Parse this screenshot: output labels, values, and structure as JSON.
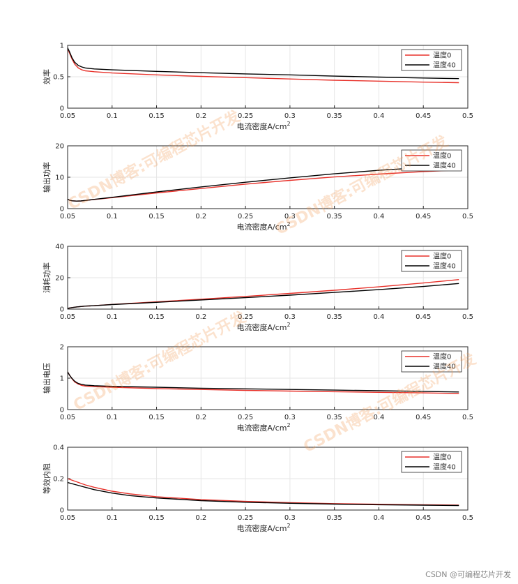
{
  "chart_data": [
    {
      "type": "line",
      "ylabel": "效率",
      "xlabel": "电流密度A/cm",
      "xlabel_sup": "2",
      "xlim": [
        0.05,
        0.5
      ],
      "ylim": [
        0,
        1
      ],
      "xticks": [
        "0.05",
        "0.1",
        "0.15",
        "0.2",
        "0.25",
        "0.3",
        "0.35",
        "0.4",
        "0.45",
        "0.5"
      ],
      "yticks": [
        "0",
        "0.5",
        "1"
      ],
      "grid": true,
      "legend": "top-right",
      "series": [
        {
          "name": "温度0",
          "color": "#e8312a",
          "x": [
            0.05,
            0.052,
            0.055,
            0.058,
            0.062,
            0.066,
            0.07,
            0.08,
            0.1,
            0.15,
            0.2,
            0.25,
            0.3,
            0.35,
            0.4,
            0.45,
            0.49
          ],
          "y": [
            0.95,
            0.88,
            0.78,
            0.7,
            0.64,
            0.61,
            0.595,
            0.58,
            0.56,
            0.53,
            0.505,
            0.485,
            0.465,
            0.445,
            0.43,
            0.415,
            0.405
          ]
        },
        {
          "name": "温度40",
          "color": "#000000",
          "x": [
            0.05,
            0.052,
            0.055,
            0.058,
            0.062,
            0.066,
            0.07,
            0.08,
            0.1,
            0.15,
            0.2,
            0.25,
            0.3,
            0.35,
            0.4,
            0.45,
            0.49
          ],
          "y": [
            0.96,
            0.9,
            0.8,
            0.73,
            0.68,
            0.655,
            0.64,
            0.625,
            0.61,
            0.585,
            0.565,
            0.545,
            0.53,
            0.51,
            0.495,
            0.48,
            0.47
          ]
        }
      ]
    },
    {
      "type": "line",
      "ylabel": "输出功率",
      "xlabel": "电流密度A/cm",
      "xlabel_sup": "2",
      "xlim": [
        0.05,
        0.5
      ],
      "ylim": [
        0,
        20
      ],
      "xticks": [
        "0.05",
        "0.1",
        "0.15",
        "0.2",
        "0.25",
        "0.3",
        "0.35",
        "0.4",
        "0.45",
        "0.5"
      ],
      "yticks": [
        "0",
        "10",
        "20"
      ],
      "grid": true,
      "legend": "top-right",
      "series": [
        {
          "name": "温度0",
          "color": "#e8312a",
          "x": [
            0.05,
            0.052,
            0.055,
            0.06,
            0.065,
            0.07,
            0.08,
            0.1,
            0.15,
            0.2,
            0.25,
            0.3,
            0.35,
            0.4,
            0.45,
            0.49
          ],
          "y": [
            3.0,
            2.7,
            2.5,
            2.4,
            2.45,
            2.6,
            2.9,
            3.5,
            5.0,
            6.4,
            7.8,
            9.0,
            10.1,
            11.0,
            11.8,
            12.3
          ]
        },
        {
          "name": "温度40",
          "color": "#000000",
          "x": [
            0.05,
            0.052,
            0.055,
            0.06,
            0.065,
            0.07,
            0.08,
            0.1,
            0.15,
            0.2,
            0.25,
            0.3,
            0.35,
            0.4,
            0.45,
            0.49
          ],
          "y": [
            3.0,
            2.7,
            2.5,
            2.4,
            2.45,
            2.6,
            2.95,
            3.6,
            5.3,
            6.9,
            8.4,
            9.8,
            11.1,
            12.2,
            13.1,
            13.7
          ]
        }
      ]
    },
    {
      "type": "line",
      "ylabel": "消耗功率",
      "xlabel": "电流密度A/cm",
      "xlabel_sup": "2",
      "xlim": [
        0.05,
        0.5
      ],
      "ylim": [
        0,
        40
      ],
      "xticks": [
        "0.05",
        "0.1",
        "0.15",
        "0.2",
        "0.25",
        "0.3",
        "0.35",
        "0.4",
        "0.45",
        "0.5"
      ],
      "yticks": [
        "0",
        "20",
        "40"
      ],
      "grid": true,
      "legend": "top-right",
      "series": [
        {
          "name": "温度0",
          "color": "#e8312a",
          "x": [
            0.05,
            0.055,
            0.06,
            0.07,
            0.08,
            0.1,
            0.15,
            0.2,
            0.25,
            0.3,
            0.35,
            0.4,
            0.45,
            0.49
          ],
          "y": [
            0.5,
            1.0,
            1.4,
            1.9,
            2.2,
            3.0,
            4.6,
            6.3,
            8.1,
            10.0,
            12.0,
            14.2,
            16.6,
            18.8
          ]
        },
        {
          "name": "温度40",
          "color": "#000000",
          "x": [
            0.05,
            0.055,
            0.06,
            0.07,
            0.08,
            0.1,
            0.15,
            0.2,
            0.25,
            0.3,
            0.35,
            0.4,
            0.45,
            0.49
          ],
          "y": [
            0.5,
            1.0,
            1.4,
            1.9,
            2.2,
            2.9,
            4.3,
            5.8,
            7.3,
            8.9,
            10.6,
            12.4,
            14.4,
            16.3
          ]
        }
      ]
    },
    {
      "type": "line",
      "ylabel": "输出电压",
      "xlabel": "电流密度A/cm",
      "xlabel_sup": "2",
      "xlim": [
        0.05,
        0.5
      ],
      "ylim": [
        0,
        2
      ],
      "xticks": [
        "0.05",
        "0.1",
        "0.15",
        "0.2",
        "0.25",
        "0.3",
        "0.35",
        "0.4",
        "0.45",
        "0.5"
      ],
      "yticks": [
        "0",
        "1",
        "2"
      ],
      "grid": true,
      "legend": "top-right",
      "series": [
        {
          "name": "温度0",
          "color": "#e8312a",
          "x": [
            0.05,
            0.052,
            0.055,
            0.058,
            0.062,
            0.066,
            0.07,
            0.08,
            0.1,
            0.15,
            0.2,
            0.25,
            0.3,
            0.35,
            0.4,
            0.45,
            0.49
          ],
          "y": [
            1.2,
            1.1,
            0.98,
            0.88,
            0.81,
            0.77,
            0.75,
            0.73,
            0.71,
            0.67,
            0.64,
            0.61,
            0.59,
            0.57,
            0.55,
            0.53,
            0.51
          ]
        },
        {
          "name": "温度40",
          "color": "#000000",
          "x": [
            0.05,
            0.052,
            0.055,
            0.058,
            0.062,
            0.066,
            0.07,
            0.08,
            0.1,
            0.15,
            0.2,
            0.25,
            0.3,
            0.35,
            0.4,
            0.45,
            0.49
          ],
          "y": [
            1.2,
            1.1,
            0.99,
            0.9,
            0.83,
            0.8,
            0.78,
            0.76,
            0.74,
            0.71,
            0.68,
            0.66,
            0.64,
            0.62,
            0.6,
            0.58,
            0.56
          ]
        }
      ]
    },
    {
      "type": "line",
      "ylabel": "等效内阻",
      "xlabel": "电流密度A/cm",
      "xlabel_sup": "2",
      "xlim": [
        0.05,
        0.5
      ],
      "ylim": [
        0,
        0.4
      ],
      "xticks": [
        "0.05",
        "0.1",
        "0.15",
        "0.2",
        "0.25",
        "0.3",
        "0.35",
        "0.4",
        "0.45",
        "0.5"
      ],
      "yticks": [
        "0",
        "0.2",
        "0.4"
      ],
      "grid": true,
      "legend": "top-right",
      "series": [
        {
          "name": "温度0",
          "color": "#e8312a",
          "x": [
            0.05,
            0.06,
            0.07,
            0.08,
            0.1,
            0.12,
            0.15,
            0.2,
            0.25,
            0.3,
            0.35,
            0.4,
            0.45,
            0.49
          ],
          "y": [
            0.2,
            0.18,
            0.16,
            0.145,
            0.12,
            0.103,
            0.085,
            0.066,
            0.055,
            0.047,
            0.041,
            0.037,
            0.034,
            0.031
          ]
        },
        {
          "name": "温度40",
          "color": "#000000",
          "x": [
            0.05,
            0.06,
            0.07,
            0.08,
            0.1,
            0.12,
            0.15,
            0.2,
            0.25,
            0.3,
            0.35,
            0.4,
            0.45,
            0.49
          ],
          "y": [
            0.175,
            0.16,
            0.145,
            0.13,
            0.108,
            0.092,
            0.077,
            0.06,
            0.05,
            0.043,
            0.038,
            0.034,
            0.031,
            0.029
          ]
        }
      ]
    }
  ],
  "watermark": "CSDN博客:可编程芯片开发",
  "footer": "CSDN @可编程芯片开发"
}
